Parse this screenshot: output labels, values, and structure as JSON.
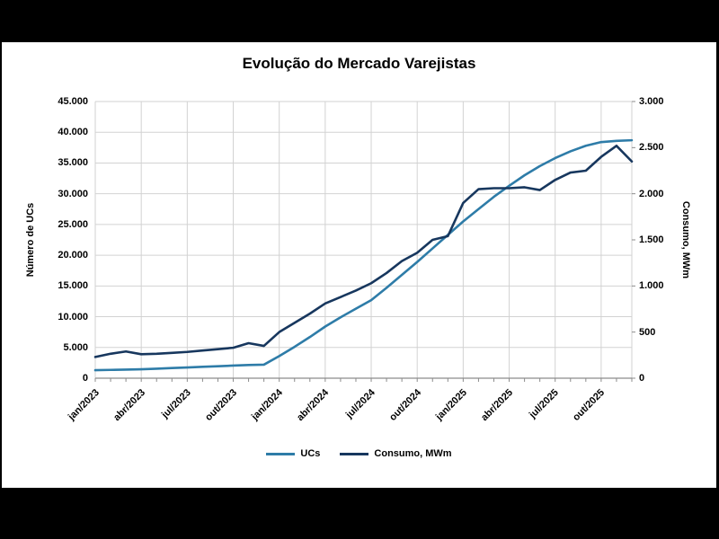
{
  "window": {
    "background": "#000000",
    "canvas_background": "#FFFFFF"
  },
  "chart_data": {
    "type": "line",
    "title": "Evolução do Mercado Varejistas",
    "x": [
      "jan/2023",
      "fev/2023",
      "mar/2023",
      "abr/2023",
      "mai/2023",
      "jun/2023",
      "jul/2023",
      "ago/2023",
      "set/2023",
      "out/2023",
      "nov/2023",
      "dez/2023",
      "jan/2024",
      "fev/2024",
      "mar/2024",
      "abr/2024",
      "mai/2024",
      "jun/2024",
      "jul/2024",
      "ago/2024",
      "set/2024",
      "out/2024",
      "nov/2024",
      "dez/2024",
      "jan/2025",
      "fev/2025",
      "mar/2025",
      "abr/2025",
      "mai/2025",
      "jun/2025",
      "jul/2025",
      "ago/2025",
      "set/2025",
      "out/2025",
      "nov/2025",
      "dez/2025"
    ],
    "x_tick_labels": [
      "jan/2023",
      "abr/2023",
      "jul/2023",
      "out/2023",
      "jan/2024",
      "abr/2024",
      "jul/2024",
      "out/2024",
      "jan/2025",
      "abr/2025",
      "jul/2025",
      "out/2025"
    ],
    "x_tick_every_months": 3,
    "grid": true,
    "legend_position": "bottom",
    "left_axis": {
      "label": "Número de UCs",
      "min": 0,
      "max": 45000,
      "step": 5000,
      "tick_labels": [
        "45.000",
        "40.000",
        "35.000",
        "30.000",
        "25.000",
        "20.000",
        "15.000",
        "10.000",
        "5.000",
        "0"
      ]
    },
    "right_axis": {
      "label": "Consumo, MWm",
      "min": 0,
      "max": 3000,
      "step": 500,
      "tick_labels": [
        "3.000",
        "2.500",
        "2.000",
        "1.500",
        "1.000",
        "500",
        "0"
      ]
    },
    "series": [
      {
        "name": "UCs",
        "axis": "left",
        "color": "#2E7CA8",
        "values": [
          1300,
          1350,
          1400,
          1450,
          1550,
          1650,
          1750,
          1850,
          1950,
          2050,
          2150,
          2200,
          3600,
          5100,
          6700,
          8400,
          9900,
          11300,
          12700,
          14700,
          16800,
          18900,
          21100,
          23300,
          25500,
          27500,
          29500,
          31300,
          33000,
          34500,
          35800,
          36900,
          37800,
          38400,
          38600,
          38700
        ]
      },
      {
        "name": "Consumo, MWm",
        "axis": "right",
        "color": "#17375E",
        "values": [
          230,
          265,
          290,
          260,
          265,
          275,
          285,
          300,
          315,
          330,
          380,
          350,
          500,
          600,
          700,
          810,
          880,
          950,
          1030,
          1140,
          1270,
          1360,
          1500,
          1540,
          1900,
          2050,
          2060,
          2060,
          2070,
          2040,
          2150,
          2230,
          2250,
          2400,
          2520,
          2350
        ]
      }
    ],
    "style": {
      "gridline_color": "#D2D2D2",
      "axis_line_color": "#8C8C8C",
      "line_width": 2.6
    }
  }
}
